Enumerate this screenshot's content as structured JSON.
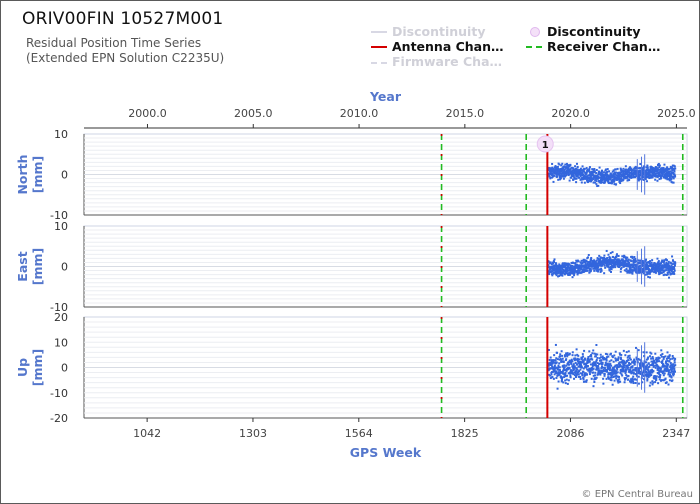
{
  "header": {
    "title": "ORIV00FIN 10527M001",
    "subtitle_line1": "Residual Position Time Series",
    "subtitle_line2": "(Extended EPN Solution C2235U)"
  },
  "legend": [
    {
      "label": "Discontinuity",
      "style": "line",
      "color": "#c8c8d8",
      "faded": true
    },
    {
      "label": "Discontinuity",
      "style": "circle",
      "color": "#e8c8f0",
      "faded": false
    },
    {
      "label": "Antenna Chan…",
      "style": "line",
      "color": "#d40000",
      "faded": false
    },
    {
      "label": "Receiver Chan…",
      "style": "dashed",
      "color": "#22bb22",
      "faded": false
    },
    {
      "label": "Firmware Cha…",
      "style": "dashed",
      "color": "#c8c8d8",
      "faded": true
    }
  ],
  "footer": {
    "credit": "© EPN Central Bureau"
  },
  "chart_data": {
    "type": "scatter",
    "x_top_label": "Year",
    "x_top_ticks": [
      "2000.0",
      "2005.0",
      "2010.0",
      "2015.0",
      "2020.0",
      "2025.0"
    ],
    "x_top_tick_values": [
      2000.0,
      2005.0,
      2010.0,
      2015.0,
      2020.0,
      2025.0
    ],
    "x_bottom_label": "GPS Week",
    "x_bottom_ticks": [
      "1042",
      "1303",
      "1564",
      "1825",
      "2086",
      "2347"
    ],
    "x_bottom_tick_values": [
      1042,
      1303,
      1564,
      1825,
      2086,
      2347
    ],
    "xlim_year": [
      1997.0,
      2025.5
    ],
    "series_color": "#3366dd",
    "antenna_change_years": [
      2018.9
    ],
    "receiver_change_years": [
      2013.9,
      2017.9,
      2025.3
    ],
    "mixed_marker_years": [
      2013.9
    ],
    "discontinuity_markers": [
      {
        "year": 2018.8,
        "label": "1"
      }
    ],
    "data_start_year": 2018.95,
    "data_end_year": 2024.95,
    "outlier_spike_years": [
      2023.15,
      2023.35,
      2023.5
    ],
    "panels": [
      {
        "ylabel": "North\n[mm]",
        "ylabel_line1": "North",
        "ylabel_line2": "[mm]",
        "ylim": [
          -10,
          10
        ],
        "yticks": [
          "10",
          "0",
          "-10"
        ],
        "ytick_values": [
          10,
          0,
          -10
        ],
        "trend": [
          [
            2019.0,
            0.5
          ],
          [
            2020.0,
            0.8
          ],
          [
            2021.0,
            -0.5
          ],
          [
            2022.0,
            -0.8
          ],
          [
            2023.0,
            0.2
          ],
          [
            2024.0,
            0.6
          ],
          [
            2025.0,
            0.2
          ]
        ],
        "noise": 1.3
      },
      {
        "ylabel": "East\n[mm]",
        "ylabel_line1": "East",
        "ylabel_line2": "[mm]",
        "ylim": [
          -10,
          10
        ],
        "yticks": [
          "10",
          "0",
          "-10"
        ],
        "ytick_values": [
          10,
          0,
          -10
        ],
        "trend": [
          [
            2019.0,
            -0.3
          ],
          [
            2020.0,
            -0.8
          ],
          [
            2021.0,
            0.5
          ],
          [
            2022.0,
            1.2
          ],
          [
            2023.0,
            0.3
          ],
          [
            2024.0,
            -0.5
          ],
          [
            2025.0,
            -0.2
          ]
        ],
        "noise": 1.4
      },
      {
        "ylabel": "Up\n[mm]",
        "ylabel_line1": "Up",
        "ylabel_line2": "[mm]",
        "ylim": [
          -20,
          20
        ],
        "yticks": [
          "20",
          "10",
          "0",
          "-10",
          "-20"
        ],
        "ytick_values": [
          20,
          10,
          0,
          -10,
          -20
        ],
        "trend": [
          [
            2019.0,
            0.0
          ],
          [
            2021.0,
            0.5
          ],
          [
            2023.0,
            -0.5
          ],
          [
            2025.0,
            0.0
          ]
        ],
        "noise": 4.5
      }
    ]
  }
}
